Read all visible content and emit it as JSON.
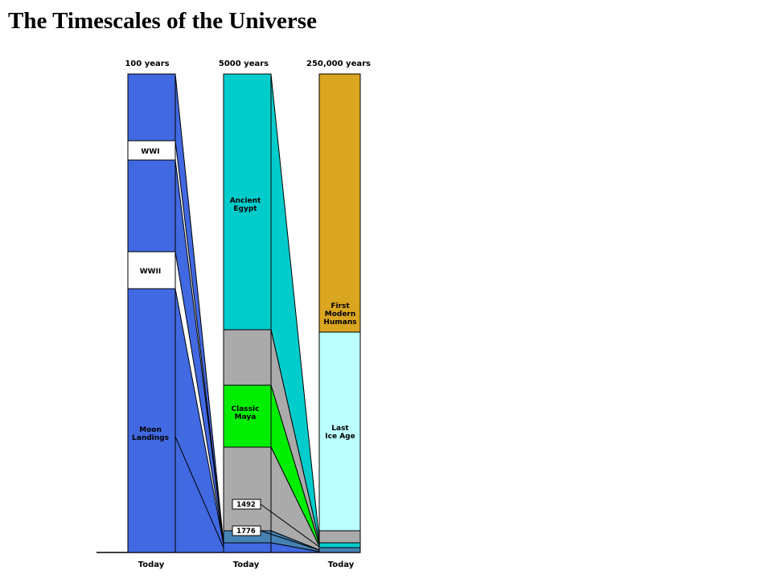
{
  "title": "The Timescales of the Universe",
  "columns": [
    {
      "header": "100 years",
      "footer": "Today",
      "color": "#4169e1",
      "labels": {
        "wwi": "WWI",
        "wwii": "WWII",
        "moon": [
          "Moon",
          "Landings"
        ]
      }
    },
    {
      "header": "5000 years",
      "footer": "Today",
      "color": "#00cccc",
      "labels": {
        "egypt": [
          "Ancient",
          "Egypt"
        ],
        "maya": [
          "Classic",
          "Maya"
        ],
        "y1492": "1492",
        "y1776": "1776"
      }
    },
    {
      "header": "250,000 years",
      "footer": "Today",
      "color": "#daa520",
      "labels": {
        "humans": [
          "First",
          "Modern",
          "Humans"
        ],
        "ice": [
          "Last",
          "Ice Age"
        ]
      }
    }
  ],
  "colors": {
    "blue": "#4169e1",
    "cyan": "#00cccc",
    "gray": "#aaaaaa",
    "green": "#00ee00",
    "steel": "#4682b4",
    "gold": "#daa520",
    "lightcyan": "#bbffff",
    "white": "#ffffff"
  }
}
